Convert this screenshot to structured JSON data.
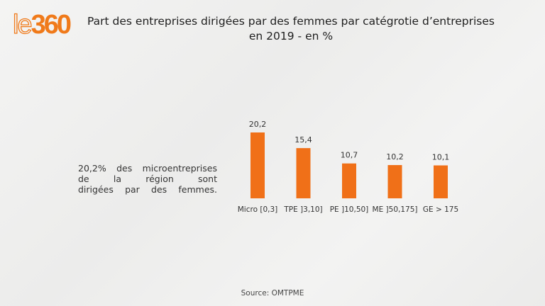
{
  "logo": {
    "part1": "le",
    "part2": "360"
  },
  "title_lines": [
    "Part des entreprises dirigées par des femmes par catégrotie d’entreprises",
    "en 2019 - en %"
  ],
  "note_lines": [
    "20,2% des microentreprises",
    "de la région sont",
    "dirigées par des femmes."
  ],
  "source": "Source: OMTPME",
  "colors": {
    "bar": "#f07018",
    "brand": "#f07a1a"
  },
  "chart_data": {
    "type": "bar",
    "title": "Part des entreprises dirigées par des femmes par catégrotie d’entreprises en 2019 - en %",
    "xlabel": "",
    "ylabel": "",
    "categories": [
      "Micro [0,3]",
      "TPE ]3,10]",
      "PE ]10,50]",
      "ME ]50,175]",
      "GE > 175"
    ],
    "values": [
      20.2,
      15.4,
      10.7,
      10.2,
      10.1
    ],
    "value_labels": [
      "20,2",
      "15,4",
      "10,7",
      "10,2",
      "10,1"
    ],
    "ylim": [
      0,
      20.2
    ],
    "grid": false,
    "legend": "none"
  }
}
